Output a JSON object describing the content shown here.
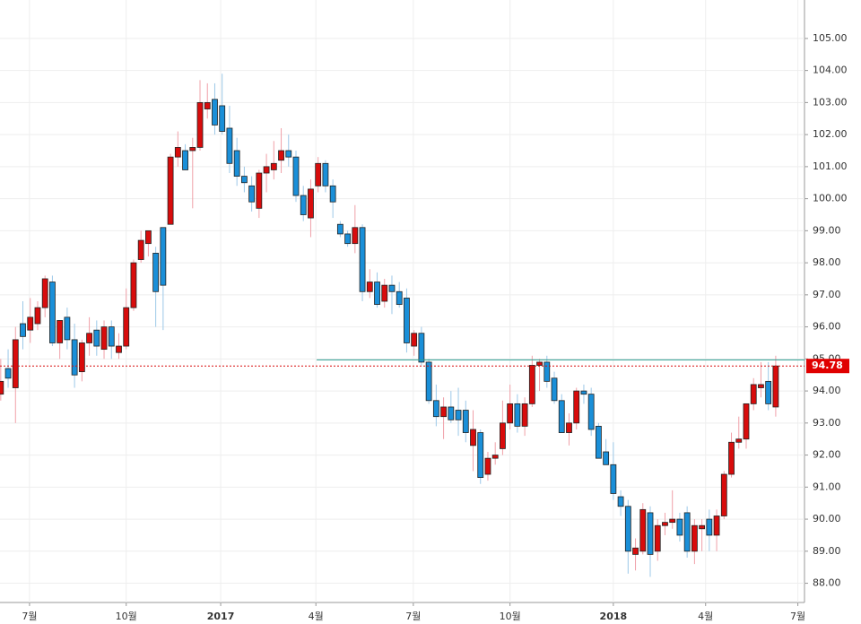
{
  "chart_data": {
    "type": "candlestick",
    "up_color": "#d80c0c",
    "down_color": "#1a8fd8",
    "grid": true,
    "open": [
      93.9,
      94.7,
      94.1,
      96.1,
      95.9,
      96.1,
      96.6,
      97.4,
      95.5,
      96.3,
      95.6,
      94.6,
      95.5,
      95.9,
      95.3,
      96.0,
      95.2,
      95.4,
      96.6,
      98.1,
      98.6,
      98.3,
      99.1,
      99.2,
      101.3,
      101.5,
      101.5,
      101.6,
      102.8,
      103.1,
      102.9,
      102.2,
      101.5,
      100.7,
      100.4,
      99.7,
      100.8,
      100.9,
      101.2,
      101.5,
      101.3,
      100.1,
      99.4,
      100.4,
      101.1,
      100.4,
      99.2,
      98.9,
      98.6,
      99.1,
      97.1,
      97.4,
      96.8,
      97.3,
      97.1,
      96.9,
      95.4,
      95.8,
      94.9,
      93.7,
      93.2,
      93.5,
      93.4,
      93.4,
      92.3,
      92.7,
      91.4,
      91.9,
      92.2,
      93.0,
      93.6,
      92.9,
      93.6,
      94.8,
      94.9,
      94.4,
      93.7,
      92.7,
      93.0,
      94.0,
      93.9,
      92.9,
      92.1,
      91.7,
      90.7,
      90.4,
      88.9,
      89.0,
      90.2,
      89.0,
      89.8,
      89.9,
      90.0,
      90.2,
      89.0,
      89.7,
      90.0,
      89.5,
      90.1,
      91.4,
      92.4,
      92.5,
      93.6,
      94.1,
      94.3,
      93.5
    ],
    "high": [
      95.0,
      95.3,
      96.0,
      96.8,
      96.9,
      96.8,
      97.6,
      97.6,
      96.2,
      96.6,
      96.1,
      95.6,
      96.3,
      96.2,
      96.2,
      96.2,
      95.8,
      97.2,
      98.1,
      99.0,
      99.0,
      98.5,
      99.1,
      101.4,
      102.1,
      101.7,
      101.9,
      103.7,
      103.6,
      103.6,
      103.9,
      102.9,
      101.9,
      101.0,
      100.7,
      100.9,
      101.4,
      101.8,
      102.2,
      102.0,
      101.5,
      100.4,
      100.6,
      101.3,
      101.2,
      100.6,
      99.3,
      99.0,
      99.8,
      99.2,
      97.8,
      97.7,
      97.5,
      97.6,
      97.4,
      97.2,
      95.9,
      96.0,
      95.0,
      94.2,
      93.8,
      94.0,
      94.1,
      93.7,
      93.4,
      92.8,
      92.1,
      92.4,
      93.7,
      94.2,
      93.9,
      93.8,
      95.1,
      95.0,
      95.1,
      94.6,
      93.9,
      93.3,
      94.1,
      94.2,
      94.1,
      93.0,
      92.5,
      92.4,
      90.9,
      90.6,
      89.4,
      90.5,
      90.4,
      90.0,
      90.2,
      90.9,
      90.2,
      90.4,
      90.0,
      90.0,
      90.3,
      90.3,
      91.5,
      92.7,
      93.2,
      93.6,
      94.4,
      94.9,
      94.9,
      95.1
    ],
    "low": [
      93.7,
      94.1,
      93.0,
      95.3,
      95.5,
      95.9,
      96.3,
      95.4,
      95.0,
      95.3,
      94.1,
      94.3,
      95.1,
      95.1,
      95.0,
      95.0,
      95.0,
      95.3,
      96.5,
      98.0,
      98.2,
      96.0,
      95.9,
      99.2,
      101.0,
      100.9,
      99.7,
      101.5,
      102.5,
      102.0,
      102.0,
      100.8,
      100.4,
      100.2,
      99.6,
      99.4,
      100.2,
      100.6,
      100.8,
      101.0,
      99.9,
      99.3,
      98.8,
      100.2,
      100.2,
      99.4,
      98.8,
      98.5,
      98.3,
      96.8,
      96.9,
      96.6,
      96.6,
      96.4,
      96.6,
      95.2,
      95.1,
      94.8,
      93.6,
      92.9,
      92.5,
      93.0,
      92.6,
      92.4,
      91.5,
      91.1,
      91.2,
      91.7,
      92.0,
      92.8,
      92.7,
      92.6,
      93.5,
      94.0,
      94.1,
      93.6,
      92.7,
      92.3,
      92.8,
      93.6,
      92.6,
      91.9,
      91.7,
      90.6,
      90.1,
      88.3,
      88.4,
      88.9,
      88.2,
      88.7,
      89.5,
      89.7,
      89.3,
      88.8,
      88.6,
      89.0,
      89.0,
      89.0,
      90.0,
      91.3,
      92.2,
      92.2,
      93.4,
      93.8,
      93.4,
      93.2
    ],
    "close": [
      94.3,
      94.4,
      95.6,
      95.7,
      96.3,
      96.6,
      97.5,
      95.5,
      96.2,
      95.6,
      94.5,
      95.5,
      95.8,
      95.4,
      96.0,
      95.4,
      95.4,
      96.6,
      98.0,
      98.7,
      99.0,
      97.1,
      97.3,
      101.3,
      101.6,
      100.9,
      101.6,
      103.0,
      103.0,
      102.3,
      102.1,
      101.1,
      100.7,
      100.5,
      99.9,
      100.8,
      101.0,
      101.1,
      101.5,
      101.3,
      100.1,
      99.5,
      100.3,
      101.1,
      100.4,
      99.9,
      98.9,
      98.6,
      99.1,
      97.1,
      97.4,
      96.7,
      97.3,
      97.1,
      96.7,
      95.5,
      95.8,
      94.9,
      93.7,
      93.2,
      93.5,
      93.1,
      93.1,
      92.7,
      92.8,
      91.3,
      91.9,
      92.0,
      93.0,
      93.6,
      92.9,
      93.6,
      94.8,
      94.9,
      94.3,
      93.7,
      92.7,
      93.0,
      94.0,
      93.9,
      92.8,
      91.9,
      91.7,
      90.8,
      90.4,
      89.0,
      89.1,
      90.3,
      88.9,
      89.8,
      89.9,
      90.0,
      89.5,
      89.0,
      89.8,
      89.8,
      89.5,
      90.1,
      91.4,
      92.4,
      92.5,
      93.6,
      94.2,
      94.2,
      93.6,
      94.78
    ],
    "last_price": 94.78,
    "level_line": {
      "value": 94.97,
      "color": "#2a9d8f"
    },
    "xlim": [
      -0.1,
      108.9
    ],
    "xticks": [
      {
        "value": 3.9,
        "label": "7월"
      },
      {
        "value": 17.0,
        "label": "10월"
      },
      {
        "value": 29.8,
        "label": "2017"
      },
      {
        "value": 42.7,
        "label": "4월"
      },
      {
        "value": 55.9,
        "label": "7월"
      },
      {
        "value": 69.0,
        "label": "10월"
      },
      {
        "value": 83.0,
        "label": "2018"
      },
      {
        "value": 95.5,
        "label": "4월"
      },
      {
        "value": 108.0,
        "label": "7월"
      }
    ],
    "ylim": [
      87.4,
      106.2
    ],
    "yticks": [
      {
        "value": 88,
        "label": "88.00"
      },
      {
        "value": 89,
        "label": "89.00"
      },
      {
        "value": 90,
        "label": "90.00"
      },
      {
        "value": 91,
        "label": "91.00"
      },
      {
        "value": 92,
        "label": "92.00"
      },
      {
        "value": 93,
        "label": "93.00"
      },
      {
        "value": 94,
        "label": "94.00"
      },
      {
        "value": 95,
        "label": "95.00"
      },
      {
        "value": 96,
        "label": "96.00"
      },
      {
        "value": 97,
        "label": "97.00"
      },
      {
        "value": 98,
        "label": "98.00"
      },
      {
        "value": 99,
        "label": "99.00"
      },
      {
        "value": 100,
        "label": "100.00"
      },
      {
        "value": 101,
        "label": "101.00"
      },
      {
        "value": 102,
        "label": "102.00"
      },
      {
        "value": 103,
        "label": "103.00"
      },
      {
        "value": 104,
        "label": "104.00"
      },
      {
        "value": 105,
        "label": "105.00"
      }
    ]
  }
}
